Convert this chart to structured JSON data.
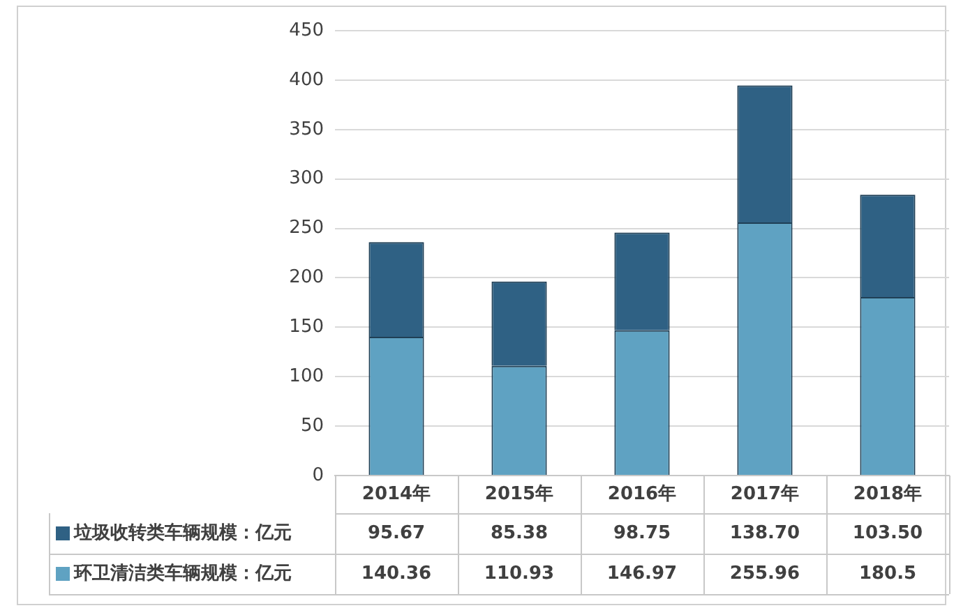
{
  "chart_data": {
    "type": "bar",
    "stacked": true,
    "categories": [
      "2014年",
      "2015年",
      "2016年",
      "2017年",
      "2018年"
    ],
    "series": [
      {
        "name": "环卫清洁类车辆规模：亿元",
        "color": "#5fa2c2",
        "values": [
          140.36,
          110.93,
          146.97,
          255.96,
          180.5
        ]
      },
      {
        "name": "垃圾收转类车辆规模：亿元",
        "color": "#2f6184",
        "values": [
          95.67,
          85.38,
          98.75,
          138.7,
          103.5
        ],
        "value_labels": [
          "95.67",
          "85.38",
          "98.75",
          "138.70",
          "103.50"
        ]
      }
    ],
    "ylim": [
      0,
      450
    ],
    "yticks": [
      0,
      50,
      100,
      150,
      200,
      250,
      300,
      350,
      400,
      450
    ],
    "grid": "y",
    "legend": "bottom",
    "data_labels": true
  }
}
